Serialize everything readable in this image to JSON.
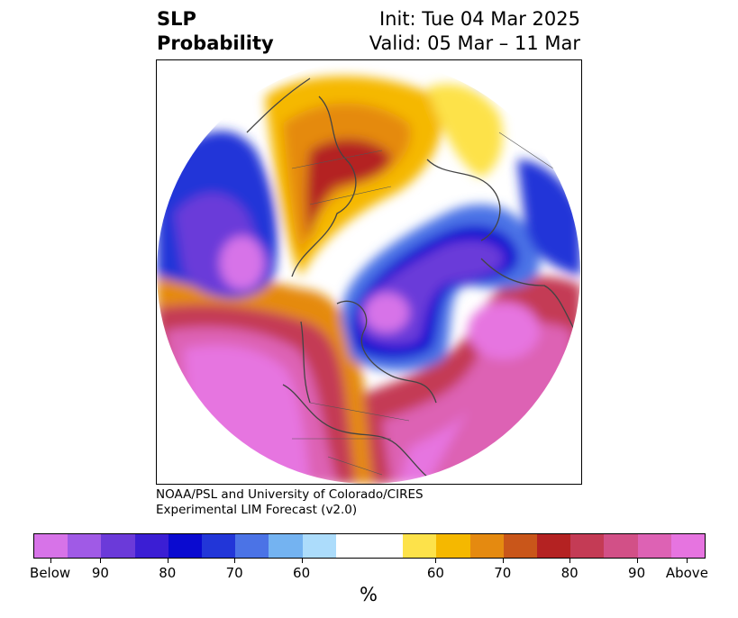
{
  "title": {
    "line1": "SLP",
    "line2": "Probability",
    "init": "Init: Tue 04 Mar 2025",
    "valid": "Valid: 05 Mar – 11 Mar"
  },
  "credit": {
    "line1": "NOAA/PSL and University of Colorado/CIRES",
    "line2": "Experimental LIM Forecast (v2.0)"
  },
  "colorbar": {
    "unit": "%",
    "colors": [
      "#d773e8",
      "#a05ae6",
      "#6b3ad9",
      "#3b1ed4",
      "#0a0ad0",
      "#2236d8",
      "#4b73e6",
      "#74b3f1",
      "#acdcfb",
      "#ffffff",
      "#ffffff",
      "#fde24a",
      "#f5b800",
      "#e58a10",
      "#c9561a",
      "#b42222",
      "#c43b55",
      "#d25087",
      "#dd62b4",
      "#e674e0"
    ],
    "ticks": [
      "Below",
      "90",
      "80",
      "70",
      "60",
      "60",
      "70",
      "80",
      "90",
      "Above"
    ]
  },
  "map": {
    "colors": {
      "strong_below": "#6b3ad9",
      "deep_below": "#0a0ad0",
      "mid_below": "#4b73e6",
      "light_below": "#acdcfb",
      "light_above": "#fde24a",
      "mid_above": "#f5b800",
      "orange_above": "#e58a10",
      "red_above": "#b42222",
      "crimson_above": "#c43b55",
      "pink_above": "#dd62b4",
      "strong_above": "#e674e0"
    }
  }
}
